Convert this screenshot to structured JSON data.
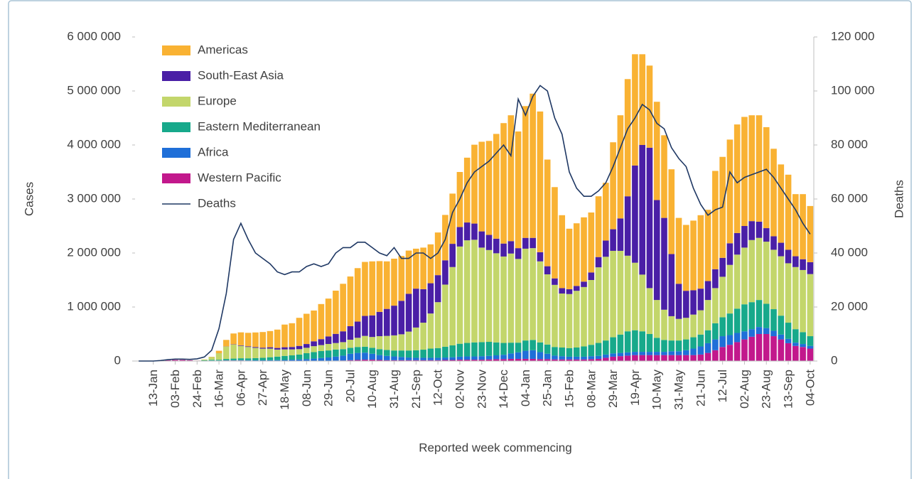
{
  "chart_data": {
    "type": "bar",
    "stacked": true,
    "x_label": "Reported week commencing",
    "y_label": "Cases",
    "y2_label": "Deaths",
    "legend": "top-left",
    "grid": false,
    "categories": [
      null,
      null,
      "13-Jan",
      null,
      null,
      "03-Feb",
      null,
      null,
      "24-Feb",
      null,
      null,
      "16-Mar",
      null,
      null,
      "06-Apr",
      null,
      null,
      "27-Apr",
      null,
      null,
      "18-May",
      null,
      null,
      "08-Jun",
      null,
      null,
      "29-Jun",
      null,
      null,
      "20-Jul",
      null,
      null,
      "10-Aug",
      null,
      null,
      "31-Aug",
      null,
      null,
      "21-Sep",
      null,
      null,
      "12-Oct",
      null,
      null,
      "02-Nov",
      null,
      null,
      "23-Nov",
      null,
      null,
      "14-Dec",
      null,
      null,
      "04-Jan",
      null,
      null,
      "25-Jan",
      null,
      null,
      "15-Feb",
      null,
      null,
      "08-Mar",
      null,
      null,
      "29-Mar",
      null,
      null,
      "19-Apr",
      null,
      null,
      "10-May",
      null,
      null,
      "31-May",
      null,
      null,
      "21-Jun",
      null,
      null,
      "12-Jul",
      null,
      null,
      "02-Aug",
      null,
      null,
      "23-Aug",
      null,
      null,
      "13-Sep",
      null,
      null,
      "04-Oct"
    ],
    "ylim": [
      0,
      6000000
    ],
    "yticks": [
      0,
      {
        "value": 1000000,
        "label": "1 000 000"
      },
      {
        "value": 2000000,
        "label": "2 000 000"
      },
      {
        "value": 3000000,
        "label": "3 000 000"
      },
      {
        "value": 4000000,
        "label": "4 000 000"
      },
      {
        "value": 5000000,
        "label": "5 000 000"
      },
      {
        "value": 6000000,
        "label": "6 000 000"
      }
    ],
    "y2lim": [
      0,
      120000
    ],
    "y2ticks": [
      0,
      {
        "value": 20000,
        "label": "20 000"
      },
      {
        "value": 40000,
        "label": "40 000"
      },
      {
        "value": 60000,
        "label": "60 000"
      },
      {
        "value": 80000,
        "label": "80 000"
      },
      {
        "value": 100000,
        "label": "100 000"
      },
      {
        "value": 120000,
        "label": "120 000"
      }
    ],
    "series": [
      {
        "name": "Americas",
        "color": "#f9b233",
        "values": [
          0,
          0,
          0,
          0,
          0,
          0,
          0,
          0,
          0,
          1000.0,
          5000.0,
          45000.0,
          120000.0,
          200000.0,
          240000.0,
          250000.0,
          270000.0,
          290000.0,
          300000.0,
          340000.0,
          420000.0,
          440000.0,
          520000.0,
          560000.0,
          570000.0,
          650000.0,
          700000.0,
          800000.0,
          880000.0,
          920000.0,
          990000.0,
          1000000.0,
          1000000.0,
          940000.0,
          880000.0,
          870000.0,
          830000.0,
          800000.0,
          740000.0,
          770000.0,
          720000.0,
          790000.0,
          840000.0,
          930000.0,
          1020000.0,
          1200000.0,
          1460000.0,
          1660000.0,
          1740000.0,
          1940000.0,
          2230000.0,
          2330000.0,
          2160000.0,
          2440000.0,
          2670000.0,
          2605000.0,
          1975000.0,
          1690000.0,
          1350000.0,
          1120000.0,
          1160000.0,
          1190000.0,
          1110000.0,
          1125000.0,
          1070000.0,
          1610000.0,
          1910000.0,
          2170000.0,
          2060000.0,
          1680000.0,
          1520000.0,
          1820000.0,
          1530000.0,
          1570000.0,
          1220000.0,
          1220000.0,
          1290000.0,
          1360000.0,
          1320000.0,
          1820000.0,
          1870000.0,
          1920000.0,
          2010000.0,
          2020000.0,
          1960000.0,
          1970000.0,
          1870000.0,
          1620000.0,
          1450000.0,
          1390000.0,
          1150000.0,
          1205000.0,
          1040000.0
        ]
      },
      {
        "name": "South-East Asia",
        "color": "#4a1fa6",
        "values": [
          0,
          0,
          0,
          0,
          0,
          0,
          0,
          0,
          0,
          0,
          0,
          1000.0,
          3000.0,
          5000.0,
          10000.0,
          12000.0,
          15000.0,
          18000.0,
          25000.0,
          30000.0,
          40000.0,
          45000.0,
          60000.0,
          70000.0,
          90000.0,
          110000.0,
          140000.0,
          170000.0,
          200000.0,
          250000.0,
          300000.0,
          370000.0,
          400000.0,
          450000.0,
          500000.0,
          550000.0,
          620000.0,
          700000.0,
          720000.0,
          620000.0,
          560000.0,
          500000.0,
          450000.0,
          430000.0,
          360000.0,
          330000.0,
          300000.0,
          300000.0,
          280000.0,
          270000.0,
          240000.0,
          230000.0,
          200000.0,
          200000.0,
          190000.0,
          170000.0,
          150000.0,
          120000.0,
          100000.0,
          90000.0,
          90000.0,
          100000.0,
          140000.0,
          190000.0,
          300000.0,
          400000.0,
          600000.0,
          1100000.0,
          1800000.0,
          2400000.0,
          2600000.0,
          1850000.0,
          1700000.0,
          1150000.0,
          650000.0,
          500000.0,
          450000.0,
          400000.0,
          350000.0,
          350000.0,
          350000.0,
          400000.0,
          400000.0,
          400000.0,
          350000.0,
          300000.0,
          250000.0,
          250000.0,
          250000.0,
          250000.0,
          200000.0,
          200000.0,
          220000.0
        ]
      },
      {
        "name": "Europe",
        "color": "#c3d66b",
        "values": [
          0,
          0,
          0,
          0,
          0,
          0,
          0,
          0,
          1000.0,
          15000.0,
          50000.0,
          120000.0,
          230000.0,
          260000.0,
          230000.0,
          210000.0,
          190000.0,
          170000.0,
          160000.0,
          130000.0,
          120000.0,
          110000.0,
          100000.0,
          100000.0,
          110000.0,
          110000.0,
          120000.0,
          120000.0,
          130000.0,
          150000.0,
          170000.0,
          200000.0,
          200000.0,
          240000.0,
          260000.0,
          280000.0,
          300000.0,
          350000.0,
          420000.0,
          500000.0,
          650000.0,
          850000.0,
          1150000.0,
          1450000.0,
          1800000.0,
          1900000.0,
          1900000.0,
          1750000.0,
          1700000.0,
          1650000.0,
          1600000.0,
          1650000.0,
          1550000.0,
          1700000.0,
          1700000.0,
          1500000.0,
          1300000.0,
          1150000.0,
          1000000.0,
          1000000.0,
          1050000.0,
          1100000.0,
          1200000.0,
          1400000.0,
          1550000.0,
          1600000.0,
          1550000.0,
          1400000.0,
          1250000.0,
          1050000.0,
          850000.0,
          700000.0,
          560000.0,
          450000.0,
          400000.0,
          400000.0,
          420000.0,
          450000.0,
          560000.0,
          650000.0,
          750000.0,
          900000.0,
          1000000.0,
          1050000.0,
          1150000.0,
          1150000.0,
          1150000.0,
          1100000.0,
          1100000.0,
          1100000.0,
          1150000.0,
          1150000.0,
          1150000.0
        ]
      },
      {
        "name": "Eastern Mediterranean",
        "color": "#17a98b",
        "values": [
          0,
          0,
          0,
          0,
          0,
          0,
          0,
          0,
          0,
          8000.0,
          15000.0,
          15000.0,
          25000.0,
          30000.0,
          35000.0,
          35000.0,
          40000.0,
          45000.0,
          55000.0,
          65000.0,
          75000.0,
          80000.0,
          90000.0,
          110000.0,
          120000.0,
          130000.0,
          130000.0,
          130000.0,
          120000.0,
          110000.0,
          110000.0,
          110000.0,
          110000.0,
          110000.0,
          110000.0,
          110000.0,
          120000.0,
          130000.0,
          140000.0,
          150000.0,
          170000.0,
          180000.0,
          200000.0,
          220000.0,
          240000.0,
          250000.0,
          260000.0,
          260000.0,
          260000.0,
          240000.0,
          220000.0,
          200000.0,
          180000.0,
          190000.0,
          190000.0,
          180000.0,
          170000.0,
          160000.0,
          160000.0,
          160000.0,
          170000.0,
          190000.0,
          210000.0,
          240000.0,
          260000.0,
          300000.0,
          340000.0,
          390000.0,
          400000.0,
          380000.0,
          330000.0,
          260000.0,
          220000.0,
          200000.0,
          200000.0,
          200000.0,
          210000.0,
          220000.0,
          240000.0,
          300000.0,
          350000.0,
          400000.0,
          450000.0,
          500000.0,
          500000.0,
          500000.0,
          450000.0,
          400000.0,
          350000.0,
          300000.0,
          250000.0,
          220000.0,
          180000.0
        ]
      },
      {
        "name": "Africa",
        "color": "#1f6fd8",
        "values": [
          0,
          0,
          0,
          0,
          0,
          0,
          0,
          0,
          0,
          0,
          0,
          1000.0,
          3000.0,
          5000.0,
          6000.0,
          7000.0,
          8000.0,
          9000.0,
          10000.0,
          12000.0,
          15000.0,
          20000.0,
          25000.0,
          30000.0,
          40000.0,
          50000.0,
          60000.0,
          75000.0,
          90000.0,
          120000.0,
          130000.0,
          130000.0,
          110000.0,
          90000.0,
          80000.0,
          70000.0,
          60000.0,
          50000.0,
          45000.0,
          45000.0,
          45000.0,
          45000.0,
          45000.0,
          50000.0,
          55000.0,
          60000.0,
          60000.0,
          65000.0,
          65000.0,
          70000.0,
          80000.0,
          100000.0,
          120000.0,
          150000.0,
          160000.0,
          130000.0,
          100000.0,
          70000.0,
          60000.0,
          50000.0,
          50000.0,
          50000.0,
          55000.0,
          55000.0,
          60000.0,
          60000.0,
          60000.0,
          60000.0,
          60000.0,
          60000.0,
          60000.0,
          60000.0,
          60000.0,
          70000.0,
          70000.0,
          90000.0,
          120000.0,
          150000.0,
          180000.0,
          200000.0,
          200000.0,
          180000.0,
          170000.0,
          150000.0,
          140000.0,
          130000.0,
          110000.0,
          100000.0,
          90000.0,
          80000.0,
          60000.0,
          55000.0,
          50000.0
        ]
      },
      {
        "name": "Western Pacific",
        "color": "#c2188c",
        "values": [
          0,
          0,
          1000.0,
          5000.0,
          15000.0,
          20000.0,
          20000.0,
          15000.0,
          8000.0,
          6000.0,
          8000.0,
          8000.0,
          10000.0,
          10000.0,
          10000.0,
          8000.0,
          6000.0,
          5000.0,
          5000.0,
          5000.0,
          5000.0,
          5000.0,
          5000.0,
          5000.0,
          5000.0,
          5000.0,
          6000.0,
          8000.0,
          10000.0,
          15000.0,
          20000.0,
          25000.0,
          25000.0,
          20000.0,
          15000.0,
          15000.0,
          15000.0,
          15000.0,
          15000.0,
          15000.0,
          15000.0,
          15000.0,
          20000.0,
          20000.0,
          25000.0,
          25000.0,
          25000.0,
          25000.0,
          30000.0,
          35000.0,
          35000.0,
          40000.0,
          40000.0,
          40000.0,
          40000.0,
          35000.0,
          35000.0,
          30000.0,
          30000.0,
          30000.0,
          30000.0,
          30000.0,
          35000.0,
          40000.0,
          60000.0,
          80000.0,
          90000.0,
          100000.0,
          110000.0,
          110000.0,
          110000.0,
          110000.0,
          110000.0,
          110000.0,
          110000.0,
          110000.0,
          110000.0,
          120000.0,
          150000.0,
          200000.0,
          260000.0,
          300000.0,
          350000.0,
          400000.0,
          450000.0,
          500000.0,
          500000.0,
          460000.0,
          400000.0,
          330000.0,
          280000.0,
          260000.0,
          230000.0
        ]
      },
      {
        "name": "Deaths",
        "color": "#1f3864",
        "type": "line",
        "axis": "y2",
        "values": [
          0,
          0,
          0,
          200,
          500,
          700,
          700,
          600,
          800,
          1500,
          4000,
          12000,
          25000,
          45000,
          51000,
          45000,
          40000,
          38000,
          36000,
          33000,
          32000,
          33000,
          33000,
          35000,
          36000,
          35000,
          36000,
          40000,
          42000,
          42000,
          44000,
          44000,
          42000,
          40000,
          39000,
          42000,
          38000,
          38000,
          40000,
          40000,
          38000,
          40000,
          45000,
          55000,
          60000,
          66000,
          70000,
          72000,
          74000,
          77000,
          80000,
          76000,
          97000,
          91000,
          98000,
          102000,
          100000,
          90000,
          84000,
          70000,
          64000,
          61000,
          61000,
          63000,
          66000,
          72000,
          79000,
          86000,
          90000,
          95000,
          93000,
          88000,
          86000,
          79000,
          75000,
          72000,
          64000,
          58000,
          54000,
          56000,
          57000,
          70000,
          66000,
          68000,
          69000,
          70000,
          71000,
          68000,
          64000,
          60000,
          56000,
          51000,
          47000
        ]
      }
    ]
  }
}
